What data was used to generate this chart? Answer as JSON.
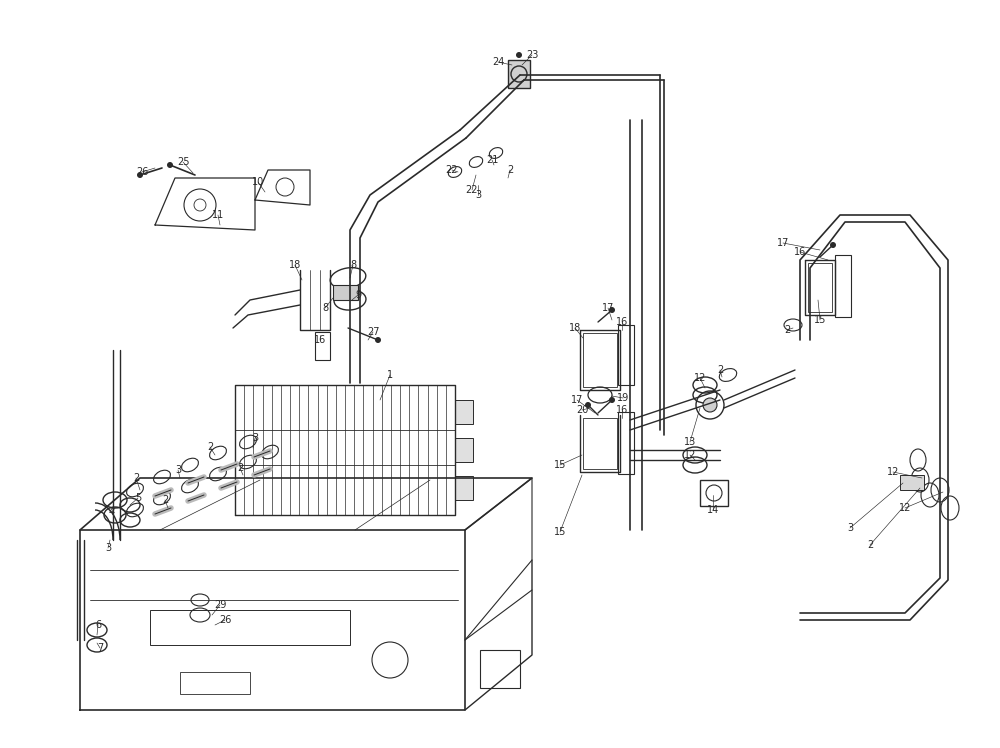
{
  "bg_color": "#ffffff",
  "line_color": "#2a2a2a",
  "fig_width": 10.0,
  "fig_height": 7.48,
  "dpi": 100
}
